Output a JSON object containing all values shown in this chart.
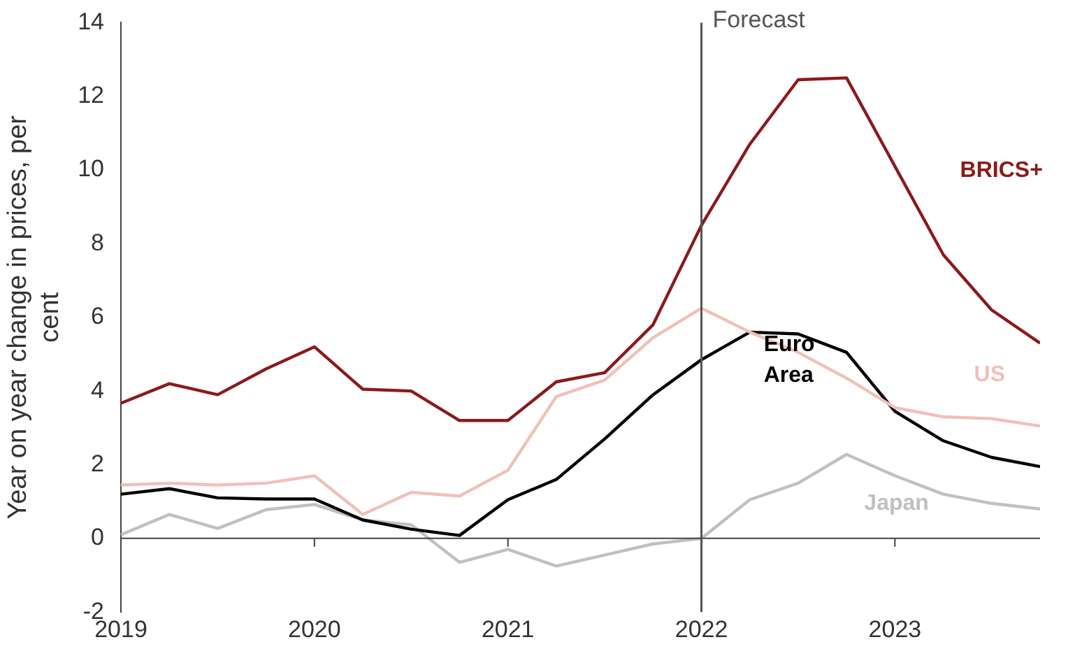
{
  "chart_data": {
    "type": "line",
    "ylabel": "Year on year change in prices, per cent",
    "x": [
      2019,
      2019.25,
      2019.5,
      2019.75,
      2020,
      2020.25,
      2020.5,
      2020.75,
      2021,
      2021.25,
      2021.5,
      2021.75,
      2022,
      2022.25,
      2022.5,
      2022.75,
      2023,
      2023.25,
      2023.5,
      2023.75
    ],
    "xlim": [
      2019,
      2023.75
    ],
    "xticks": [
      2019,
      2020,
      2021,
      2022,
      2023
    ],
    "ylim": [
      -2,
      14
    ],
    "yticks": [
      -2,
      0,
      2,
      4,
      6,
      8,
      10,
      12,
      14
    ],
    "grid": false,
    "legend": false,
    "marker": "none",
    "line_style": "solid",
    "ref_lines": [
      {
        "axis": "x",
        "value": 2022,
        "label": "Forecast",
        "color": "#555555"
      }
    ],
    "series": [
      {
        "name": "BRICS+",
        "color": "#8b1a1a",
        "values": [
          3.67,
          4.2,
          3.9,
          4.6,
          5.2,
          4.05,
          4.0,
          3.2,
          3.2,
          4.25,
          4.5,
          5.8,
          8.5,
          10.7,
          12.45,
          12.5,
          10.1,
          7.7,
          6.2,
          5.3
        ]
      },
      {
        "name": "US",
        "color": "#f0c0b8",
        "values": [
          1.45,
          1.5,
          1.45,
          1.5,
          1.7,
          0.65,
          1.25,
          1.15,
          1.85,
          3.85,
          4.3,
          5.45,
          6.25,
          5.6,
          5.05,
          4.35,
          3.55,
          3.3,
          3.25,
          3.05
        ]
      },
      {
        "name": "Euro Area",
        "color": "#000000",
        "values": [
          1.2,
          1.35,
          1.1,
          1.07,
          1.07,
          0.5,
          0.25,
          0.08,
          1.05,
          1.6,
          2.7,
          3.9,
          4.85,
          5.6,
          5.55,
          5.05,
          3.45,
          2.65,
          2.2,
          1.95
        ]
      },
      {
        "name": "Japan",
        "color": "#c0c0c0",
        "values": [
          0.1,
          0.65,
          0.27,
          0.78,
          0.92,
          0.5,
          0.37,
          -0.65,
          -0.3,
          -0.75,
          -0.45,
          -0.15,
          0.0,
          1.05,
          1.5,
          2.28,
          1.7,
          1.2,
          0.95,
          0.8
        ]
      }
    ]
  }
}
